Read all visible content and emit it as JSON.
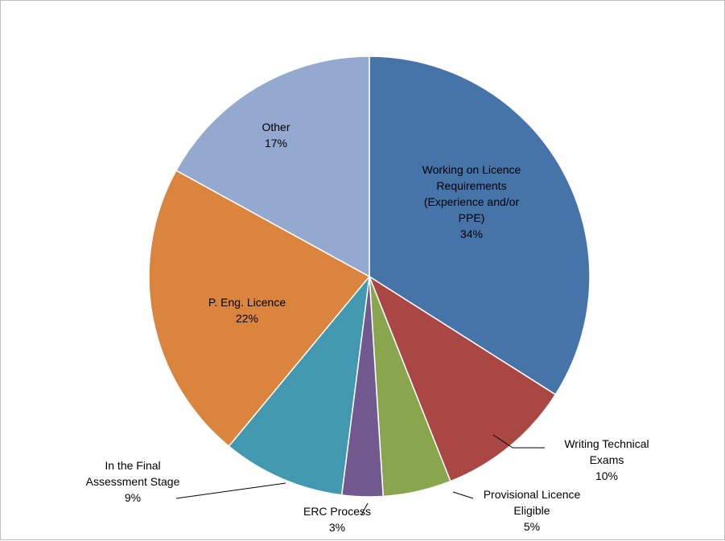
{
  "chart_data": {
    "type": "pie",
    "title": "",
    "legend": "none",
    "slices": [
      {
        "label_lines": [
          "Working on Licence",
          "Requirements",
          "(Experience and/or",
          "PPE)"
        ],
        "pct_label": "34%",
        "value": 34,
        "color": "#4673A8"
      },
      {
        "label_lines": [
          "Writing Technical",
          "Exams"
        ],
        "pct_label": "10%",
        "value": 10,
        "color": "#AA4643"
      },
      {
        "label_lines": [
          "Provisional Licence",
          "Eligible"
        ],
        "pct_label": "5%",
        "value": 5,
        "color": "#89A54E"
      },
      {
        "label_lines": [
          "ERC Process"
        ],
        "pct_label": "3%",
        "value": 3,
        "color": "#71588F"
      },
      {
        "label_lines": [
          "In the Final",
          "Assessment Stage"
        ],
        "pct_label": "9%",
        "value": 9,
        "color": "#4198AF"
      },
      {
        "label_lines": [
          "P. Eng. Licence"
        ],
        "pct_label": "22%",
        "value": 22,
        "color": "#DB843D"
      },
      {
        "label_lines": [
          "Other"
        ],
        "pct_label": "17%",
        "value": 17,
        "color": "#93A9CF"
      }
    ]
  }
}
